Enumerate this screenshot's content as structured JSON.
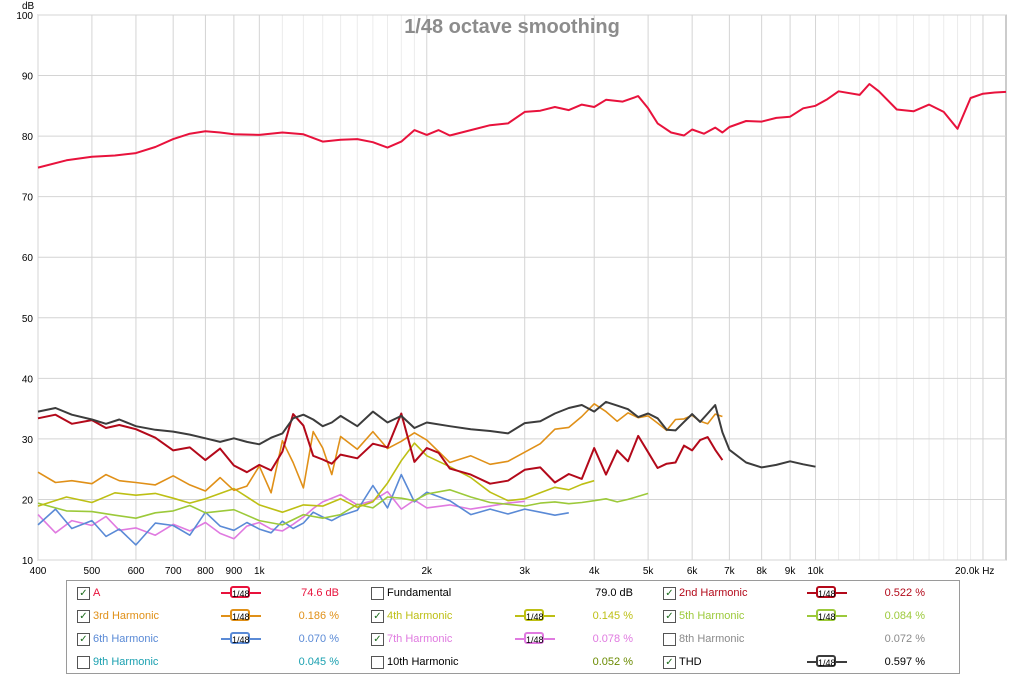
{
  "chart_data": {
    "type": "line",
    "title": "1/48 octave smoothing",
    "ylabel": "dB",
    "xlabel": "Hz",
    "xscale": "log",
    "xlim": [
      400,
      22000
    ],
    "ylim": [
      10,
      100
    ],
    "grid": true,
    "y_ticks": [
      "10",
      "20",
      "30",
      "40",
      "50",
      "60",
      "70",
      "80",
      "90",
      "100"
    ],
    "x_ticks": [
      {
        "v": 400,
        "label": "400"
      },
      {
        "v": 500,
        "label": "500"
      },
      {
        "v": 600,
        "label": "600"
      },
      {
        "v": 700,
        "label": "700"
      },
      {
        "v": 800,
        "label": "800"
      },
      {
        "v": 900,
        "label": "900"
      },
      {
        "v": 1000,
        "label": "1k"
      },
      {
        "v": 2000,
        "label": "2k"
      },
      {
        "v": 3000,
        "label": "3k"
      },
      {
        "v": 4000,
        "label": "4k"
      },
      {
        "v": 5000,
        "label": "5k"
      },
      {
        "v": 6000,
        "label": "6k"
      },
      {
        "v": 7000,
        "label": "7k"
      },
      {
        "v": 8000,
        "label": "8k"
      },
      {
        "v": 9000,
        "label": "9k"
      },
      {
        "v": 10000,
        "label": "10k"
      },
      {
        "v": 20000,
        "label": "20.0k Hz"
      }
    ],
    "minor_x": [
      1100,
      1200,
      1300,
      1400,
      1500,
      1600,
      1700,
      1800,
      1900,
      11000,
      12000,
      13000,
      14000,
      15000,
      16000,
      17000,
      18000,
      19000
    ],
    "series": [
      {
        "name": "A",
        "color": "#e8123c",
        "width": 2,
        "x": [
          400,
          450,
          500,
          550,
          600,
          650,
          700,
          750,
          800,
          850,
          900,
          1000,
          1100,
          1200,
          1300,
          1400,
          1500,
          1600,
          1700,
          1800,
          1900,
          2000,
          2100,
          2200,
          2400,
          2600,
          2800,
          3000,
          3200,
          3400,
          3600,
          3800,
          4000,
          4200,
          4500,
          4800,
          5000,
          5200,
          5500,
          5800,
          6000,
          6300,
          6600,
          6800,
          7000,
          7500,
          8000,
          8500,
          9000,
          9500,
          10000,
          10500,
          11000,
          12000,
          12500,
          13000,
          14000,
          15000,
          16000,
          17000,
          18000,
          19000,
          20000,
          21000,
          22000
        ],
        "y": [
          74.8,
          76,
          76.6,
          76.8,
          77.2,
          78.2,
          79.5,
          80.4,
          80.8,
          80.6,
          80.3,
          80.2,
          80.6,
          80.3,
          79.1,
          79.4,
          79.5,
          79,
          78.1,
          79.1,
          81,
          80.2,
          81,
          80.1,
          81,
          81.8,
          82.1,
          84,
          84.2,
          84.8,
          84.3,
          85.2,
          84.8,
          86,
          85.7,
          86.6,
          84.6,
          82.1,
          80.6,
          80.1,
          81.1,
          80.4,
          81.4,
          80.6,
          81.5,
          82.5,
          82.4,
          83,
          83.2,
          84.6,
          85,
          86.1,
          87.4,
          86.8,
          88.6,
          87.4,
          84.4,
          84.1,
          85.2,
          84,
          81.2,
          86.3,
          87,
          87.2,
          87.3
        ]
      },
      {
        "name": "THD",
        "color": "#3c3c3c",
        "width": 2,
        "x": [
          400,
          430,
          460,
          500,
          530,
          560,
          600,
          650,
          700,
          750,
          800,
          850,
          900,
          950,
          1000,
          1050,
          1100,
          1150,
          1200,
          1250,
          1300,
          1350,
          1400,
          1500,
          1600,
          1700,
          1800,
          1900,
          2000,
          2200,
          2400,
          2600,
          2800,
          3000,
          3200,
          3400,
          3600,
          3800,
          4000,
          4200,
          4400,
          4600,
          4800,
          5000,
          5200,
          5400,
          5600,
          5800,
          6000,
          6200,
          6400,
          6600,
          6800,
          7000,
          7500,
          8000,
          8500,
          9000,
          9500,
          10000
        ],
        "y": [
          34.5,
          35.1,
          34,
          33.2,
          32.5,
          33.2,
          32.1,
          31.5,
          31.2,
          30.7,
          30.1,
          29.5,
          30.1,
          29.5,
          29.1,
          30.2,
          30.9,
          33.4,
          34,
          33.2,
          32.1,
          32.7,
          33.8,
          32.1,
          34.5,
          32.7,
          33.8,
          31.8,
          32.7,
          32.1,
          31.6,
          31.3,
          30.9,
          32.6,
          32.9,
          34.2,
          35.1,
          35.6,
          34.5,
          36.1,
          35.5,
          34.9,
          33.6,
          34.2,
          33.4,
          31.5,
          31.4,
          32.8,
          34.1,
          32.8,
          34.2,
          35.6,
          31.1,
          28.2,
          26.1,
          25.3,
          25.7,
          26.3,
          25.8,
          25.4
        ]
      },
      {
        "name": "2nd Harmonic",
        "color": "#b3091a",
        "width": 2,
        "x": [
          400,
          430,
          460,
          500,
          530,
          560,
          600,
          650,
          700,
          750,
          800,
          850,
          900,
          950,
          1000,
          1050,
          1100,
          1150,
          1200,
          1250,
          1300,
          1350,
          1400,
          1500,
          1600,
          1700,
          1800,
          1900,
          2000,
          2100,
          2200,
          2400,
          2600,
          2800,
          3000,
          3200,
          3400,
          3600,
          3800,
          4000,
          4200,
          4400,
          4600,
          4800,
          5000,
          5200,
          5400,
          5600,
          5800,
          6000,
          6200,
          6400,
          6600,
          6800
        ],
        "y": [
          33.4,
          34,
          32.5,
          33.1,
          31.8,
          32.3,
          31.6,
          30.2,
          28.1,
          28.6,
          26.5,
          28.4,
          25.6,
          24.5,
          25.7,
          24.8,
          27.9,
          34.1,
          32.2,
          27.2,
          26.6,
          25.9,
          27.4,
          26.8,
          29.2,
          28.6,
          34.2,
          26.2,
          28.5,
          27.7,
          25.1,
          24.1,
          22.6,
          23.1,
          24.9,
          25.3,
          22.8,
          24.2,
          23.4,
          28.5,
          24.1,
          28.1,
          26.3,
          30.5,
          27.8,
          25.2,
          25.9,
          26.1,
          28.9,
          28.1,
          29.8,
          30.3,
          28.2,
          26.5
        ]
      },
      {
        "name": "3rd Harmonic",
        "color": "#e09018",
        "width": 1.6,
        "x": [
          400,
          430,
          460,
          500,
          530,
          560,
          600,
          650,
          700,
          750,
          800,
          850,
          900,
          950,
          1000,
          1050,
          1100,
          1150,
          1200,
          1250,
          1300,
          1350,
          1400,
          1500,
          1600,
          1700,
          1800,
          1900,
          2000,
          2200,
          2400,
          2600,
          2800,
          3000,
          3200,
          3400,
          3600,
          3800,
          4000,
          4200,
          4400,
          4600,
          4800,
          5000,
          5200,
          5400,
          5600,
          5800,
          6000,
          6200,
          6400,
          6600,
          6800
        ],
        "y": [
          24.5,
          22.8,
          23.1,
          22.6,
          24.1,
          23.1,
          22.8,
          22.4,
          23.9,
          22.4,
          21.4,
          23.6,
          21.5,
          22.2,
          25.5,
          21.1,
          29.7,
          26.1,
          21.9,
          31.2,
          28.5,
          24.1,
          30.4,
          28.3,
          31.2,
          28.4,
          29.6,
          31,
          29.8,
          26.1,
          27.2,
          25.8,
          26.3,
          27.8,
          29.2,
          31.6,
          31.9,
          33.7,
          35.8,
          34.5,
          32.9,
          34.3,
          33.5,
          33.8,
          32.6,
          31.4,
          33.2,
          33.3,
          33.9,
          32.9,
          32.5,
          34.1,
          33.7
        ]
      },
      {
        "name": "4th Harmonic",
        "color": "#bdbf14",
        "width": 1.6,
        "x": [
          400,
          450,
          500,
          550,
          600,
          650,
          700,
          750,
          800,
          900,
          1000,
          1100,
          1200,
          1300,
          1400,
          1500,
          1600,
          1700,
          1800,
          1900,
          2000,
          2200,
          2400,
          2600,
          2800,
          3000,
          3200,
          3400,
          3600,
          3800,
          4000
        ],
        "y": [
          18.9,
          20.4,
          19.5,
          21.1,
          20.7,
          21,
          20.2,
          19.4,
          20.1,
          21.8,
          19.1,
          17.9,
          19.1,
          18.9,
          20.1,
          18.7,
          19.6,
          22.7,
          26.4,
          29.3,
          27.2,
          25.4,
          23.6,
          21.2,
          19.8,
          20.1,
          21.1,
          22,
          21.6,
          22.5,
          23.1
        ]
      },
      {
        "name": "5th Harmonic",
        "color": "#9cc93a",
        "width": 1.6,
        "x": [
          400,
          450,
          500,
          550,
          600,
          650,
          700,
          750,
          800,
          900,
          1000,
          1100,
          1200,
          1300,
          1400,
          1500,
          1600,
          1700,
          1800,
          1900,
          2000,
          2200,
          2400,
          2600,
          2800,
          3000,
          3200,
          3400,
          3600,
          3800,
          4000,
          4200,
          4400,
          4600,
          4800,
          5000
        ],
        "y": [
          19.4,
          18.1,
          18,
          17.4,
          16.9,
          17.8,
          18.1,
          19,
          17.8,
          18.3,
          16.5,
          15.8,
          17.5,
          16.9,
          17.5,
          19.2,
          18.6,
          20.4,
          20.2,
          19.8,
          20.9,
          21.6,
          20.4,
          19.5,
          19.2,
          18.9,
          19.4,
          19.6,
          19.3,
          19.5,
          19.8,
          20.1,
          19.6,
          20,
          20.5,
          21
        ]
      },
      {
        "name": "6th Harmonic",
        "color": "#5a8ad6",
        "width": 1.6,
        "x": [
          400,
          430,
          460,
          500,
          530,
          560,
          600,
          650,
          700,
          750,
          800,
          850,
          900,
          950,
          1000,
          1050,
          1100,
          1150,
          1200,
          1250,
          1300,
          1350,
          1400,
          1500,
          1600,
          1700,
          1800,
          1900,
          2000,
          2200,
          2400,
          2600,
          2800,
          3000,
          3200,
          3400,
          3600
        ],
        "y": [
          15.8,
          18.4,
          15.2,
          16.5,
          13.9,
          15.1,
          12.5,
          16.1,
          15.7,
          14.1,
          17.9,
          15.6,
          14.9,
          16.2,
          15.1,
          14.5,
          16.4,
          15.2,
          16.1,
          17.9,
          17.1,
          16.5,
          17.3,
          18.2,
          22.3,
          18.6,
          24.1,
          19.6,
          21.2,
          19.8,
          17.5,
          18.4,
          17.6,
          18.4,
          17.9,
          17.4,
          17.8
        ]
      },
      {
        "name": "7th Harmonic",
        "color": "#e07ae0",
        "width": 1.6,
        "x": [
          400,
          430,
          460,
          500,
          530,
          560,
          600,
          650,
          700,
          750,
          800,
          850,
          900,
          950,
          1000,
          1050,
          1100,
          1150,
          1200,
          1250,
          1300,
          1350,
          1400,
          1500,
          1600,
          1700,
          1800,
          1900,
          2000,
          2200,
          2400,
          2600,
          2800,
          3000
        ],
        "y": [
          17.5,
          14.5,
          16.5,
          15.7,
          17.2,
          14.9,
          15.3,
          14.1,
          15.9,
          14.8,
          16.2,
          14.4,
          13.5,
          15.6,
          16.2,
          15.1,
          14.8,
          15.9,
          17.1,
          18.5,
          19.6,
          20.2,
          20.8,
          19.1,
          19.8,
          21.3,
          18.4,
          19.9,
          18.6,
          19.1,
          18.4,
          18.9,
          19.4,
          19.7
        ]
      }
    ]
  },
  "legend": [
    {
      "checked": true,
      "name": "A",
      "name_color": "#e8123c",
      "smooth": "1/48",
      "line_color": "#e8123c",
      "value": "74.6 dB",
      "value_color": "#e8123c",
      "col": 0,
      "row": 0
    },
    {
      "checked": false,
      "name": "Fundamental",
      "name_color": "#000000",
      "smooth": "",
      "line_color": "",
      "value": "79.0 dB",
      "value_color": "#000000",
      "col": 1,
      "row": 0
    },
    {
      "checked": true,
      "name": "2nd Harmonic",
      "name_color": "#b3091a",
      "smooth": "1/48",
      "line_color": "#b3091a",
      "value": "0.522 %",
      "value_color": "#b3091a",
      "col": 2,
      "row": 0
    },
    {
      "checked": true,
      "name": "3rd Harmonic",
      "name_color": "#e09018",
      "smooth": "1/48",
      "line_color": "#e09018",
      "value": "0.186 %",
      "value_color": "#e09018",
      "col": 0,
      "row": 1
    },
    {
      "checked": true,
      "name": "4th Harmonic",
      "name_color": "#bdbf14",
      "smooth": "1/48",
      "line_color": "#bdbf14",
      "value": "0.145 %",
      "value_color": "#bdbf14",
      "col": 1,
      "row": 1
    },
    {
      "checked": true,
      "name": "5th Harmonic",
      "name_color": "#9cc93a",
      "smooth": "1/48",
      "line_color": "#9cc93a",
      "value": "0.084 %",
      "value_color": "#9cc93a",
      "col": 2,
      "row": 1
    },
    {
      "checked": true,
      "name": "6th Harmonic",
      "name_color": "#5a8ad6",
      "smooth": "1/48",
      "line_color": "#5a8ad6",
      "value": "0.070 %",
      "value_color": "#5a8ad6",
      "col": 0,
      "row": 2
    },
    {
      "checked": true,
      "name": "7th Harmonic",
      "name_color": "#e07ae0",
      "smooth": "1/48",
      "line_color": "#e07ae0",
      "value": "0.078 %",
      "value_color": "#e07ae0",
      "col": 1,
      "row": 2
    },
    {
      "checked": false,
      "name": "8th Harmonic",
      "name_color": "#8a8a8a",
      "smooth": "",
      "line_color": "",
      "value": "0.072 %",
      "value_color": "#8a8a8a",
      "col": 2,
      "row": 2
    },
    {
      "checked": false,
      "name": "9th Harmonic",
      "name_color": "#1aa0b0",
      "smooth": "",
      "line_color": "",
      "value": "0.045 %",
      "value_color": "#1aa0b0",
      "col": 0,
      "row": 3
    },
    {
      "checked": false,
      "name": "10th Harmonic",
      "name_color": "#000000",
      "smooth": "",
      "line_color": "",
      "value": "0.052 %",
      "value_color": "#6a8a00",
      "col": 1,
      "row": 3
    },
    {
      "checked": true,
      "name": "THD",
      "name_color": "#000000",
      "smooth": "1/48",
      "line_color": "#3c3c3c",
      "value": "0.597 %",
      "value_color": "#000000",
      "col": 2,
      "row": 3
    }
  ]
}
